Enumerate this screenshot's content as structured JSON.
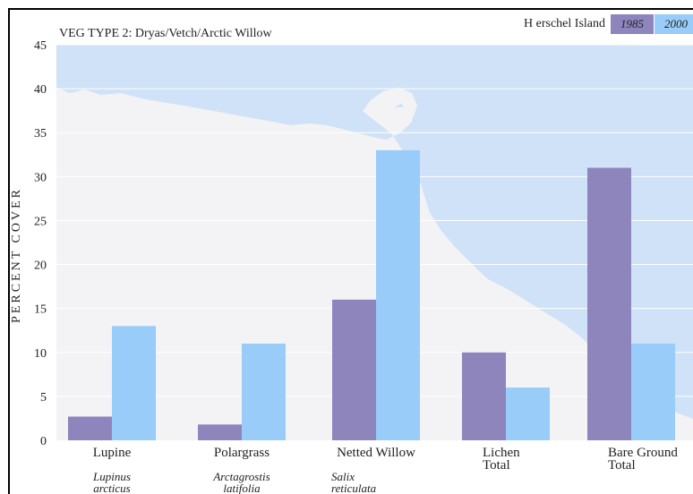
{
  "header": {
    "title": "VEG TYPE 2: Dryas/Vetch/Arctic Willow",
    "location": "H erschel Island"
  },
  "colors": {
    "series_1985": "#8e85bd",
    "series_2000": "#99ccf8",
    "sea": "#cfe2f7",
    "land": "#f3f3f5",
    "frame": "#000000",
    "grid": "#ffffff"
  },
  "chart_data": {
    "type": "bar",
    "title": "VEG TYPE 2: Dryas/Vetch/Arctic Willow",
    "ylabel": "PERCENT COVER",
    "xlabel": "",
    "ylim": [
      0,
      45
    ],
    "yticks": [
      0,
      5,
      10,
      15,
      20,
      25,
      30,
      35,
      40,
      45
    ],
    "grid": true,
    "legend_position": "top-right",
    "categories": [
      {
        "name_lines": [
          "Lupine"
        ],
        "latin_lines": [
          "Lupinus",
          "arcticus"
        ]
      },
      {
        "name_lines": [
          "Polargrass"
        ],
        "latin_lines": [
          "Arctagrostis",
          "latifolia"
        ]
      },
      {
        "name_lines": [
          "Netted Willow"
        ],
        "latin_lines": [
          "Salix",
          "reticulata"
        ]
      },
      {
        "name_lines": [
          "Lichen",
          "Total"
        ],
        "latin_lines": []
      },
      {
        "name_lines": [
          "Bare Ground",
          "Total"
        ],
        "latin_lines": []
      }
    ],
    "series": [
      {
        "name": "1985",
        "values": [
          2.7,
          1.8,
          16,
          10,
          31
        ]
      },
      {
        "name": "2000",
        "values": [
          13,
          11,
          33,
          6,
          11
        ]
      }
    ]
  }
}
